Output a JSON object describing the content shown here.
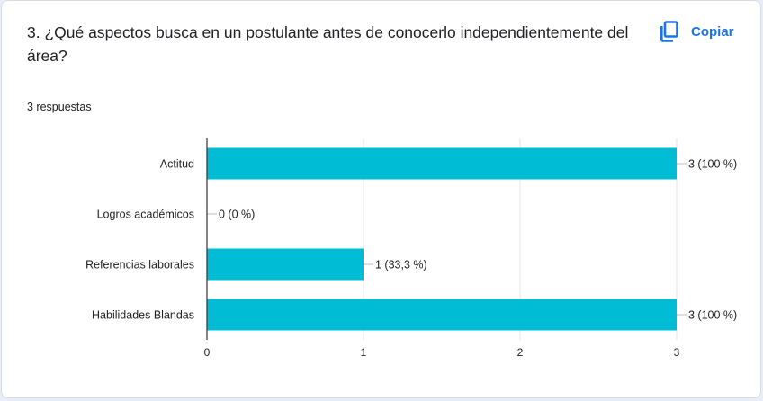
{
  "question": {
    "title": "3. ¿Qué aspectos busca en un postulante antes de conocerlo independientemente del área?",
    "copy_label": "Copiar",
    "copy_icon": "copy-icon",
    "response_count": "3 respuestas"
  },
  "colors": {
    "bar": "#00bcd4",
    "accent": "#1a73e8"
  },
  "chart_data": {
    "type": "bar",
    "orientation": "horizontal",
    "categories": [
      "Actitud",
      "Logros académicos",
      "Referencias laborales",
      "Habilidades Blandas"
    ],
    "values": [
      3,
      0,
      1,
      3
    ],
    "data_labels": [
      "3 (100 %)",
      "0 (0 %)",
      "1 (33,3 %)",
      "3 (100 %)"
    ],
    "xlim": [
      0,
      3
    ],
    "xticks": [
      0,
      1,
      2,
      3
    ],
    "xtick_labels": [
      "0",
      "1",
      "2",
      "3"
    ],
    "grid": true,
    "legend": "none"
  }
}
